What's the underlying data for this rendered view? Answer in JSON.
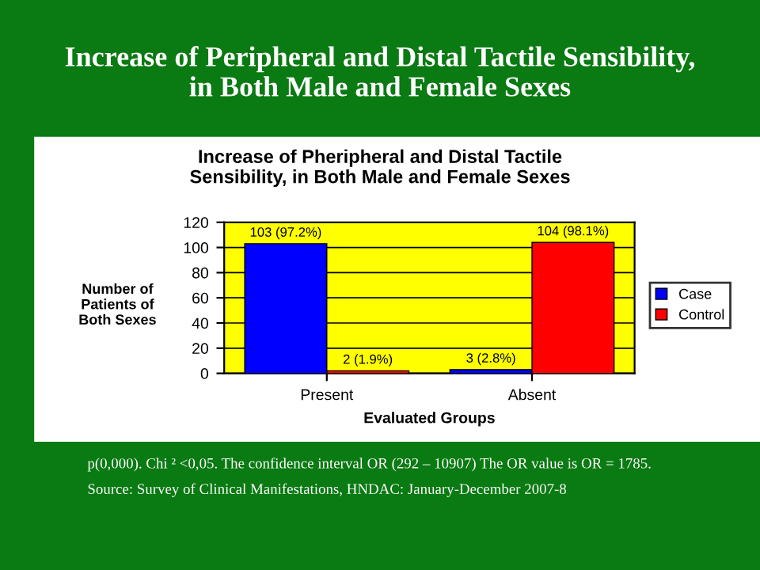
{
  "chart_data": {
    "type": "bar",
    "title": "Increase of Peripheral and Distal Tactile Sensibility, in Both Male and Female Sexes",
    "subtitle": "Increase of Pheripheral and Distal Tactile Sensibility, in Both Male and Female Sexes",
    "xlabel": "Evaluated Groups",
    "ylabel": "Number of Patients of Both Sexes",
    "categories": [
      "Present",
      "Absent"
    ],
    "series": [
      {
        "name": "Case",
        "color": "#0000ff",
        "values": [
          103,
          3
        ],
        "value_labels": [
          "103 (97.2%)",
          "3 (2.8%)"
        ]
      },
      {
        "name": "Control",
        "color": "#ff0000",
        "values": [
          2,
          104
        ],
        "value_labels": [
          "2 (1.9%)",
          "104 (98.1%)"
        ]
      }
    ],
    "ylim": [
      0,
      120
    ],
    "yticks": [
      0,
      20,
      40,
      60,
      80,
      100,
      120
    ],
    "grid": "y",
    "legend": "right",
    "annotations": [
      "p(0,000). Chi ² <0,05. The confidence interval OR (292 – 10907) The OR value is OR = 1785.",
      "Source: Survey of Clinical Manifestations, HNDAC: January-December 2007-8"
    ]
  }
}
